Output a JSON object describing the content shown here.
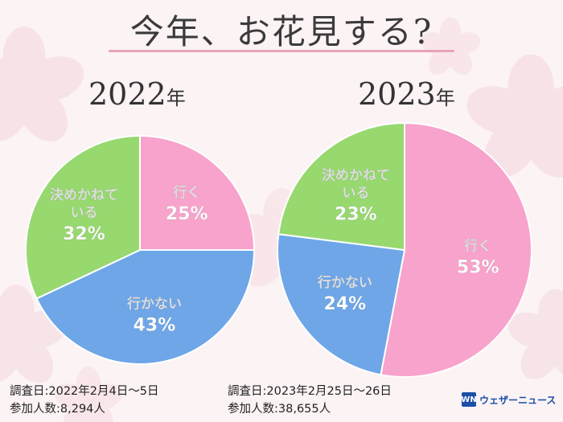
{
  "title": "今年、お花見する?",
  "chart_data": [
    {
      "type": "pie",
      "year_label": "2022",
      "year_suffix": "年",
      "slices": [
        {
          "label": "行く",
          "value": 25,
          "color": "#f8a3cb"
        },
        {
          "label": "行かない",
          "value": 43,
          "color": "#6ea6e8"
        },
        {
          "label": "決めかねている",
          "label_lines": [
            "決めかねて",
            "いる"
          ],
          "value": 32,
          "color": "#97d86f"
        }
      ],
      "survey_date": "調査日:2022年2月4日〜5日",
      "participants": "参加人数:8,294人"
    },
    {
      "type": "pie",
      "year_label": "2023",
      "year_suffix": "年",
      "slices": [
        {
          "label": "行く",
          "value": 53,
          "color": "#f8a3cb"
        },
        {
          "label": "行かない",
          "value": 24,
          "color": "#6ea6e8"
        },
        {
          "label": "決めかねている",
          "label_lines": [
            "決めかねて",
            "いる"
          ],
          "value": 23,
          "color": "#97d86f"
        }
      ],
      "survey_date": "調査日:2023年2月25日〜26日",
      "participants": "参加人数:38,655人"
    }
  ],
  "logo": {
    "mark": "WN",
    "text": "ウェザーニュース"
  }
}
